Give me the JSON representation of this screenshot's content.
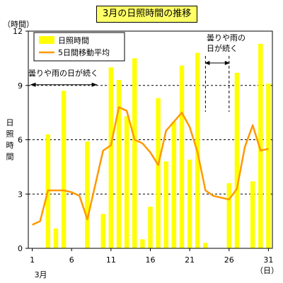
{
  "chart_data": {
    "type": "bar",
    "title": "3月の日照時間の推移",
    "y_unit_label": "（時間）",
    "ylabel_chars": [
      "日",
      "照",
      "時",
      "間"
    ],
    "xlabel_month": "3月",
    "x_unit_label": "（日）",
    "x_ticks": [
      1,
      6,
      11,
      16,
      21,
      26,
      31
    ],
    "y_ticks": [
      0,
      3,
      6,
      9,
      12
    ],
    "ylim": [
      0,
      12
    ],
    "xlim": [
      1,
      31
    ],
    "grid": "horizontal-dashed",
    "legend": {
      "position": "top-left",
      "items": [
        "日照時間",
        "5日間移動平均"
      ]
    },
    "colors": {
      "bar": "#ffff00",
      "line": "#ff9900"
    },
    "days": [
      1,
      2,
      3,
      4,
      5,
      6,
      7,
      8,
      9,
      10,
      11,
      12,
      13,
      14,
      15,
      16,
      17,
      18,
      19,
      20,
      21,
      22,
      23,
      24,
      25,
      26,
      27,
      28,
      29,
      30,
      31
    ],
    "series": [
      {
        "name": "日照時間",
        "type": "bar",
        "values": [
          0,
          0,
          6.3,
          1.1,
          8.7,
          0,
          0,
          5.9,
          0,
          1.9,
          10.0,
          9.3,
          7.3,
          10.5,
          0.5,
          2.3,
          8.3,
          4.8,
          7.0,
          10.1,
          4.9,
          10.8,
          0.3,
          0,
          0,
          3.6,
          9.7,
          0,
          3.7,
          11.3,
          9.1
        ]
      },
      {
        "name": "5日間移動平均",
        "type": "line",
        "values": [
          1.3,
          1.5,
          3.2,
          3.2,
          3.2,
          3.1,
          2.9,
          1.6,
          3.5,
          5.4,
          5.7,
          7.8,
          7.6,
          6.0,
          5.8,
          5.3,
          4.6,
          6.5,
          7.0,
          7.5,
          6.7,
          5.3,
          3.2,
          2.9,
          2.8,
          2.7,
          3.3,
          5.6,
          6.8,
          5.4,
          5.5
        ]
      }
    ],
    "annotations": [
      {
        "text": "曇りや雨の日が続く",
        "from_day": 1,
        "to_day": 9,
        "y": 9.0
      },
      {
        "text_lines": [
          "曇りや雨の",
          "日が続く"
        ],
        "from_day": 23,
        "to_day": 26,
        "y": 10.0
      }
    ]
  }
}
